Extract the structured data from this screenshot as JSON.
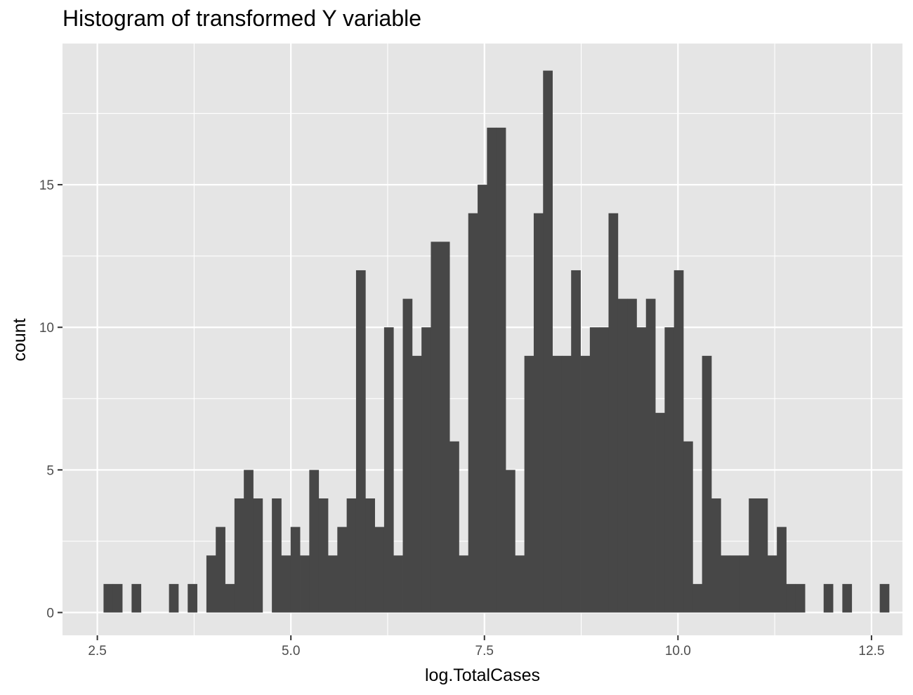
{
  "chart_data": {
    "type": "bar",
    "title": "Histogram of transformed Y variable",
    "xlabel": "log.TotalCases",
    "ylabel": "count",
    "xlim": [
      2.05,
      12.9
    ],
    "ylim": [
      -0.8,
      19.95
    ],
    "x_ticks": [
      {
        "value": 2.5,
        "label": "2.5"
      },
      {
        "value": 5.0,
        "label": "5.0"
      },
      {
        "value": 7.5,
        "label": "7.5"
      },
      {
        "value": 10.0,
        "label": "10.0"
      },
      {
        "value": 12.5,
        "label": "12.5"
      }
    ],
    "y_ticks": [
      {
        "value": 0,
        "label": "0"
      },
      {
        "value": 5,
        "label": "5"
      },
      {
        "value": 10,
        "label": "10"
      },
      {
        "value": 15,
        "label": "15"
      }
    ],
    "bin_start": 2.58,
    "bin_width": 0.1208,
    "counts": [
      1,
      1,
      0,
      1,
      0,
      0,
      0,
      1,
      0,
      1,
      0,
      2,
      3,
      1,
      4,
      5,
      4,
      0,
      4,
      2,
      3,
      2,
      5,
      4,
      2,
      3,
      4,
      12,
      4,
      3,
      10,
      2,
      11,
      9,
      10,
      13,
      13,
      6,
      2,
      14,
      15,
      17,
      17,
      5,
      2,
      9,
      14,
      19,
      9,
      9,
      12,
      9,
      10,
      10,
      14,
      11,
      11,
      10,
      11,
      7,
      10,
      12,
      6,
      1,
      9,
      4,
      2,
      2,
      2,
      4,
      4,
      2,
      3,
      1,
      1,
      0,
      0,
      1,
      0,
      1,
      0,
      0,
      0,
      1
    ],
    "bar_color": "#474747",
    "panel_color": "#e5e5e5",
    "grid": true
  }
}
